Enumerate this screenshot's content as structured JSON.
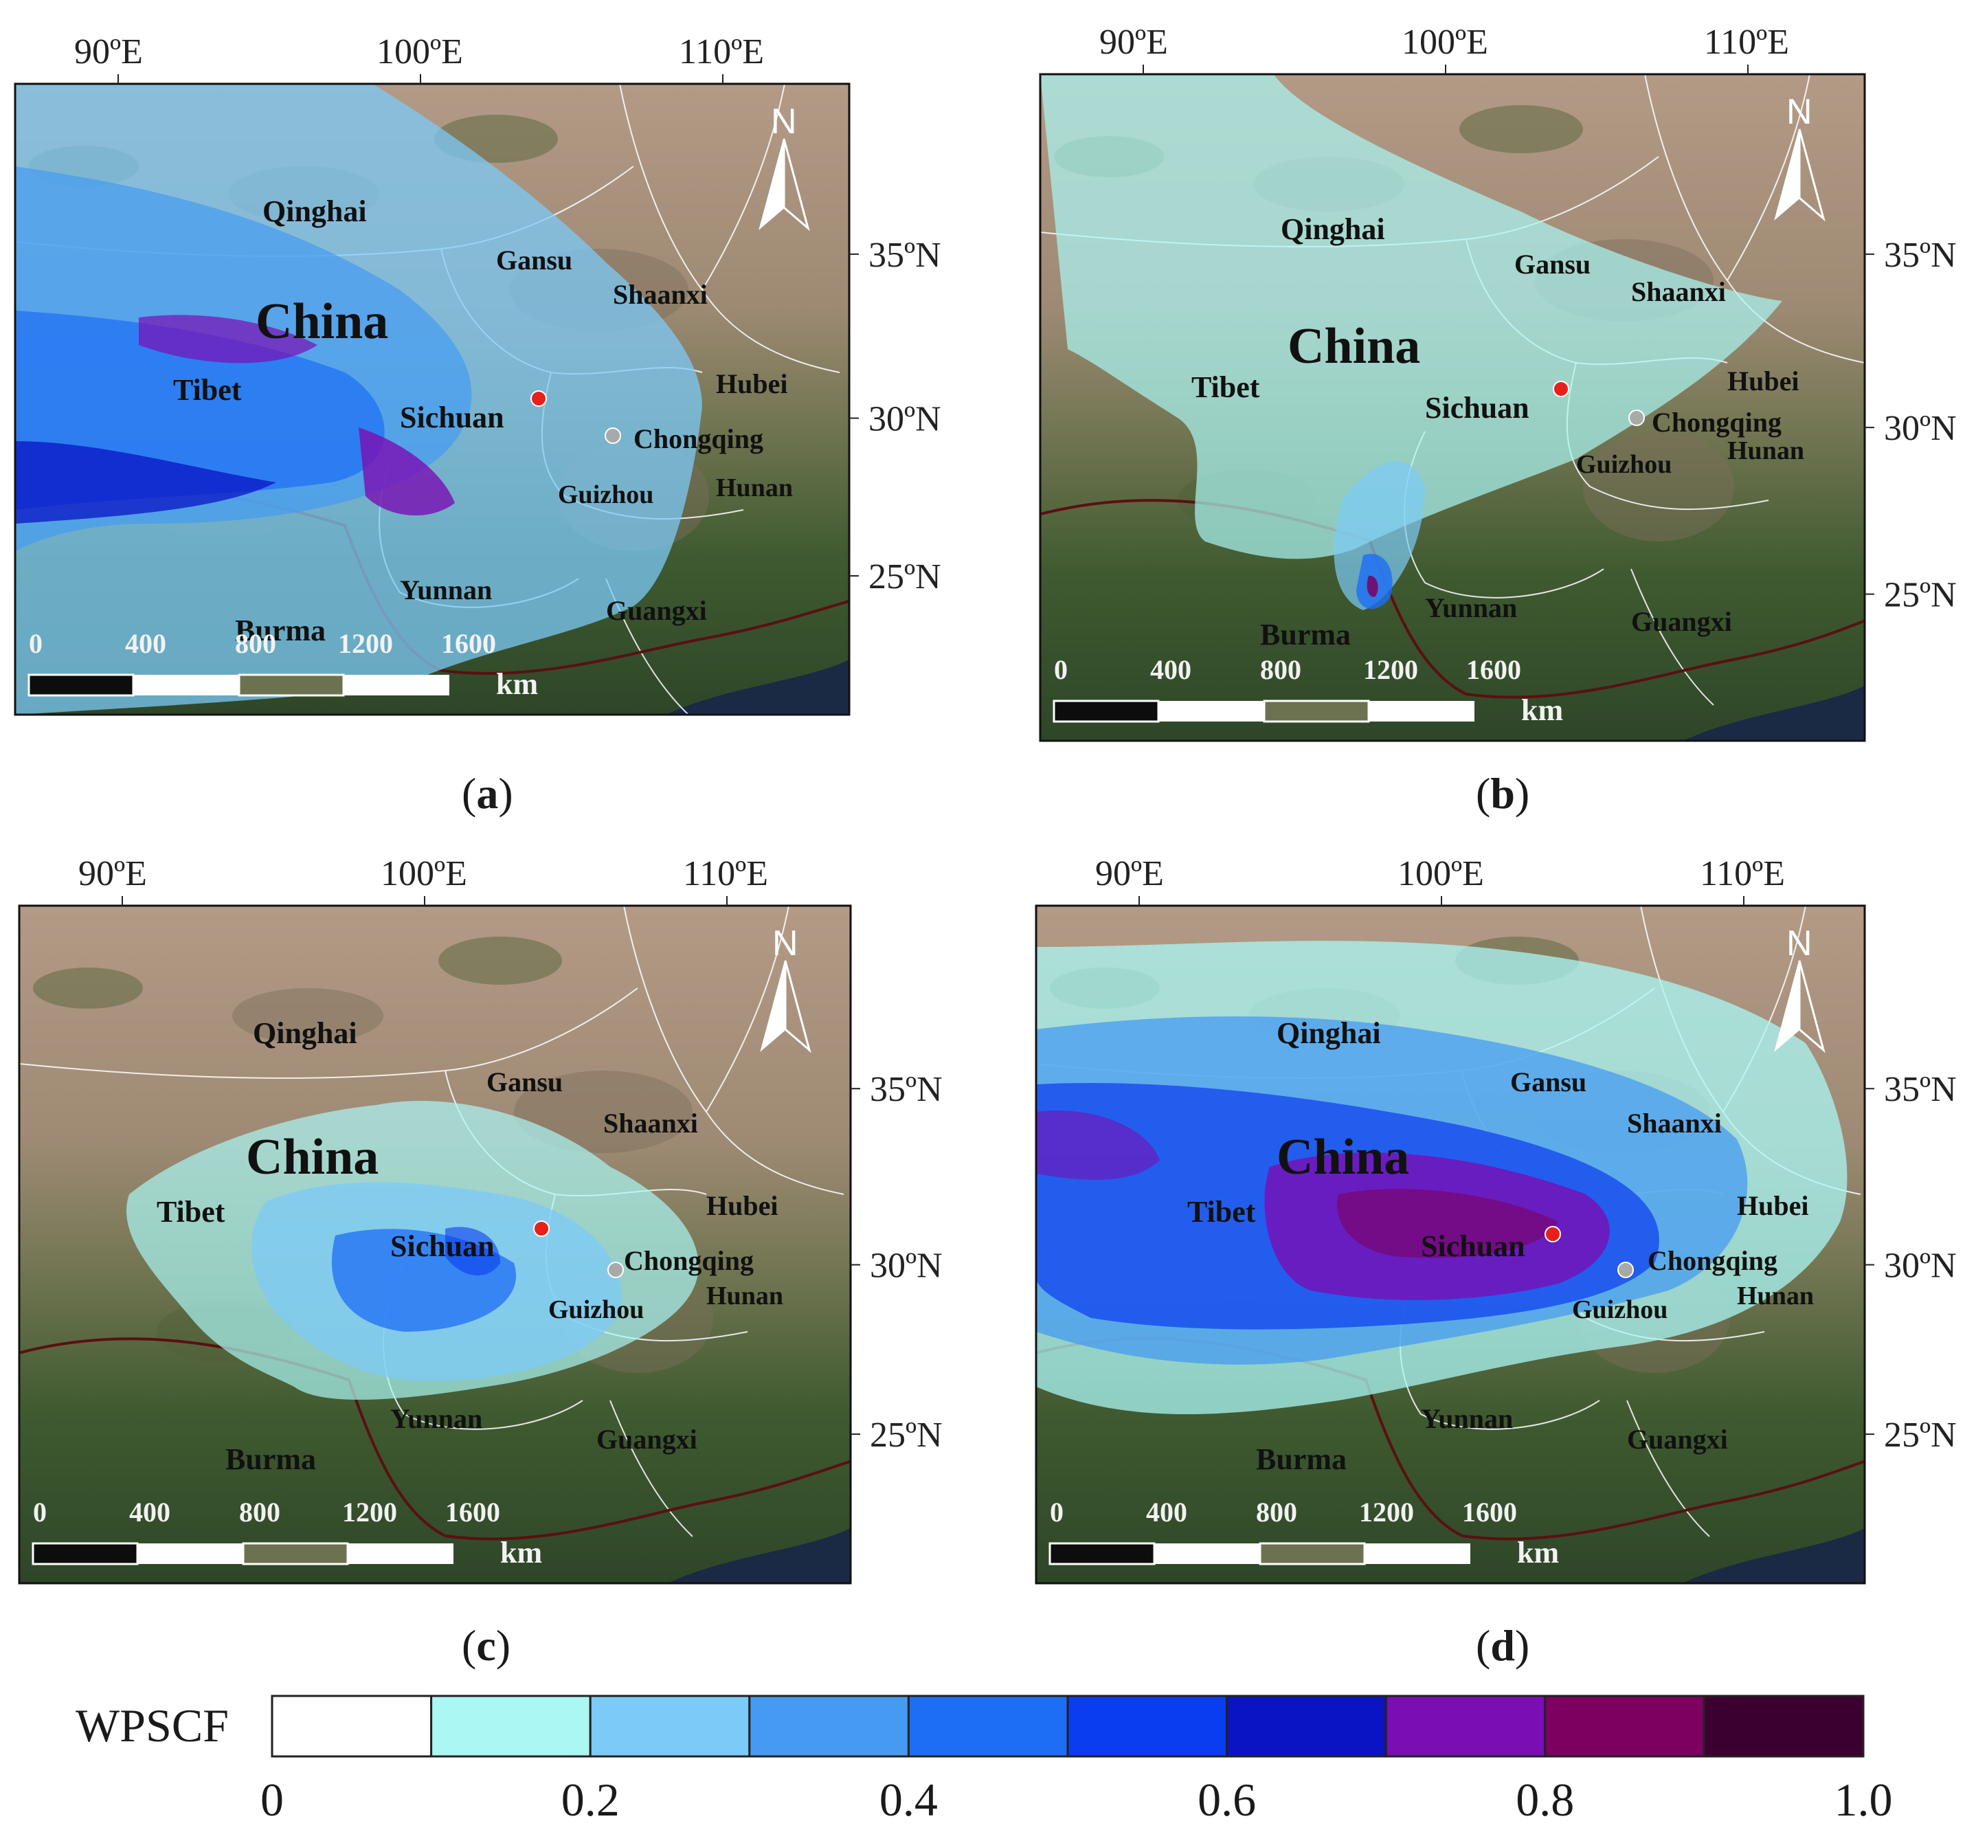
{
  "panels": [
    {
      "id": "a",
      "caption": "a"
    },
    {
      "id": "b",
      "caption": "b"
    },
    {
      "id": "c",
      "caption": "c"
    },
    {
      "id": "d",
      "caption": "d"
    }
  ],
  "axes": {
    "lon_labels": [
      "90ºE",
      "100ºE",
      "110ºE"
    ],
    "lat_labels": [
      "35ºN",
      "30ºN",
      "25ºN"
    ]
  },
  "place_labels": {
    "china": "China",
    "qinghai": "Qinghai",
    "gansu": "Gansu",
    "shaanxi": "Shaanxi",
    "tibet": "Tibet",
    "sichuan": "Sichuan",
    "chongqing": "Chongqing",
    "hubei": "Hubei",
    "guizhou": "Guizhou",
    "hunan": "Hunan",
    "yunnan": "Yunnan",
    "guangxi": "Guangxi",
    "burma": "Burma"
  },
  "scale_bar": {
    "ticks": [
      "0",
      "400",
      "800",
      "1200",
      "1600"
    ],
    "unit": "km"
  },
  "north_arrow": {
    "label": "N",
    "icon": "north-arrow-icon"
  },
  "markers": {
    "receptor_color": "#e8201c",
    "site_color": "#a9a9a9"
  },
  "legend": {
    "title": "WPSCF",
    "tick_labels": [
      "0",
      "0.2",
      "0.4",
      "0.6",
      "0.8",
      "1.0"
    ],
    "bins": [
      {
        "range": [
          0.0,
          0.1
        ],
        "color": "#ffffff"
      },
      {
        "range": [
          0.1,
          0.2
        ],
        "color": "#aaf7f4"
      },
      {
        "range": [
          0.2,
          0.3
        ],
        "color": "#7ccaf7"
      },
      {
        "range": [
          0.3,
          0.4
        ],
        "color": "#459bf2"
      },
      {
        "range": [
          0.4,
          0.5
        ],
        "color": "#1d6ef5"
      },
      {
        "range": [
          0.5,
          0.6
        ],
        "color": "#0a3cf0"
      },
      {
        "range": [
          0.6,
          0.7
        ],
        "color": "#0a14c4"
      },
      {
        "range": [
          0.7,
          0.8
        ],
        "color": "#7a0eb4"
      },
      {
        "range": [
          0.8,
          0.9
        ],
        "color": "#7d0060"
      },
      {
        "range": [
          0.9,
          1.0
        ],
        "color": "#3c0030"
      }
    ]
  }
}
